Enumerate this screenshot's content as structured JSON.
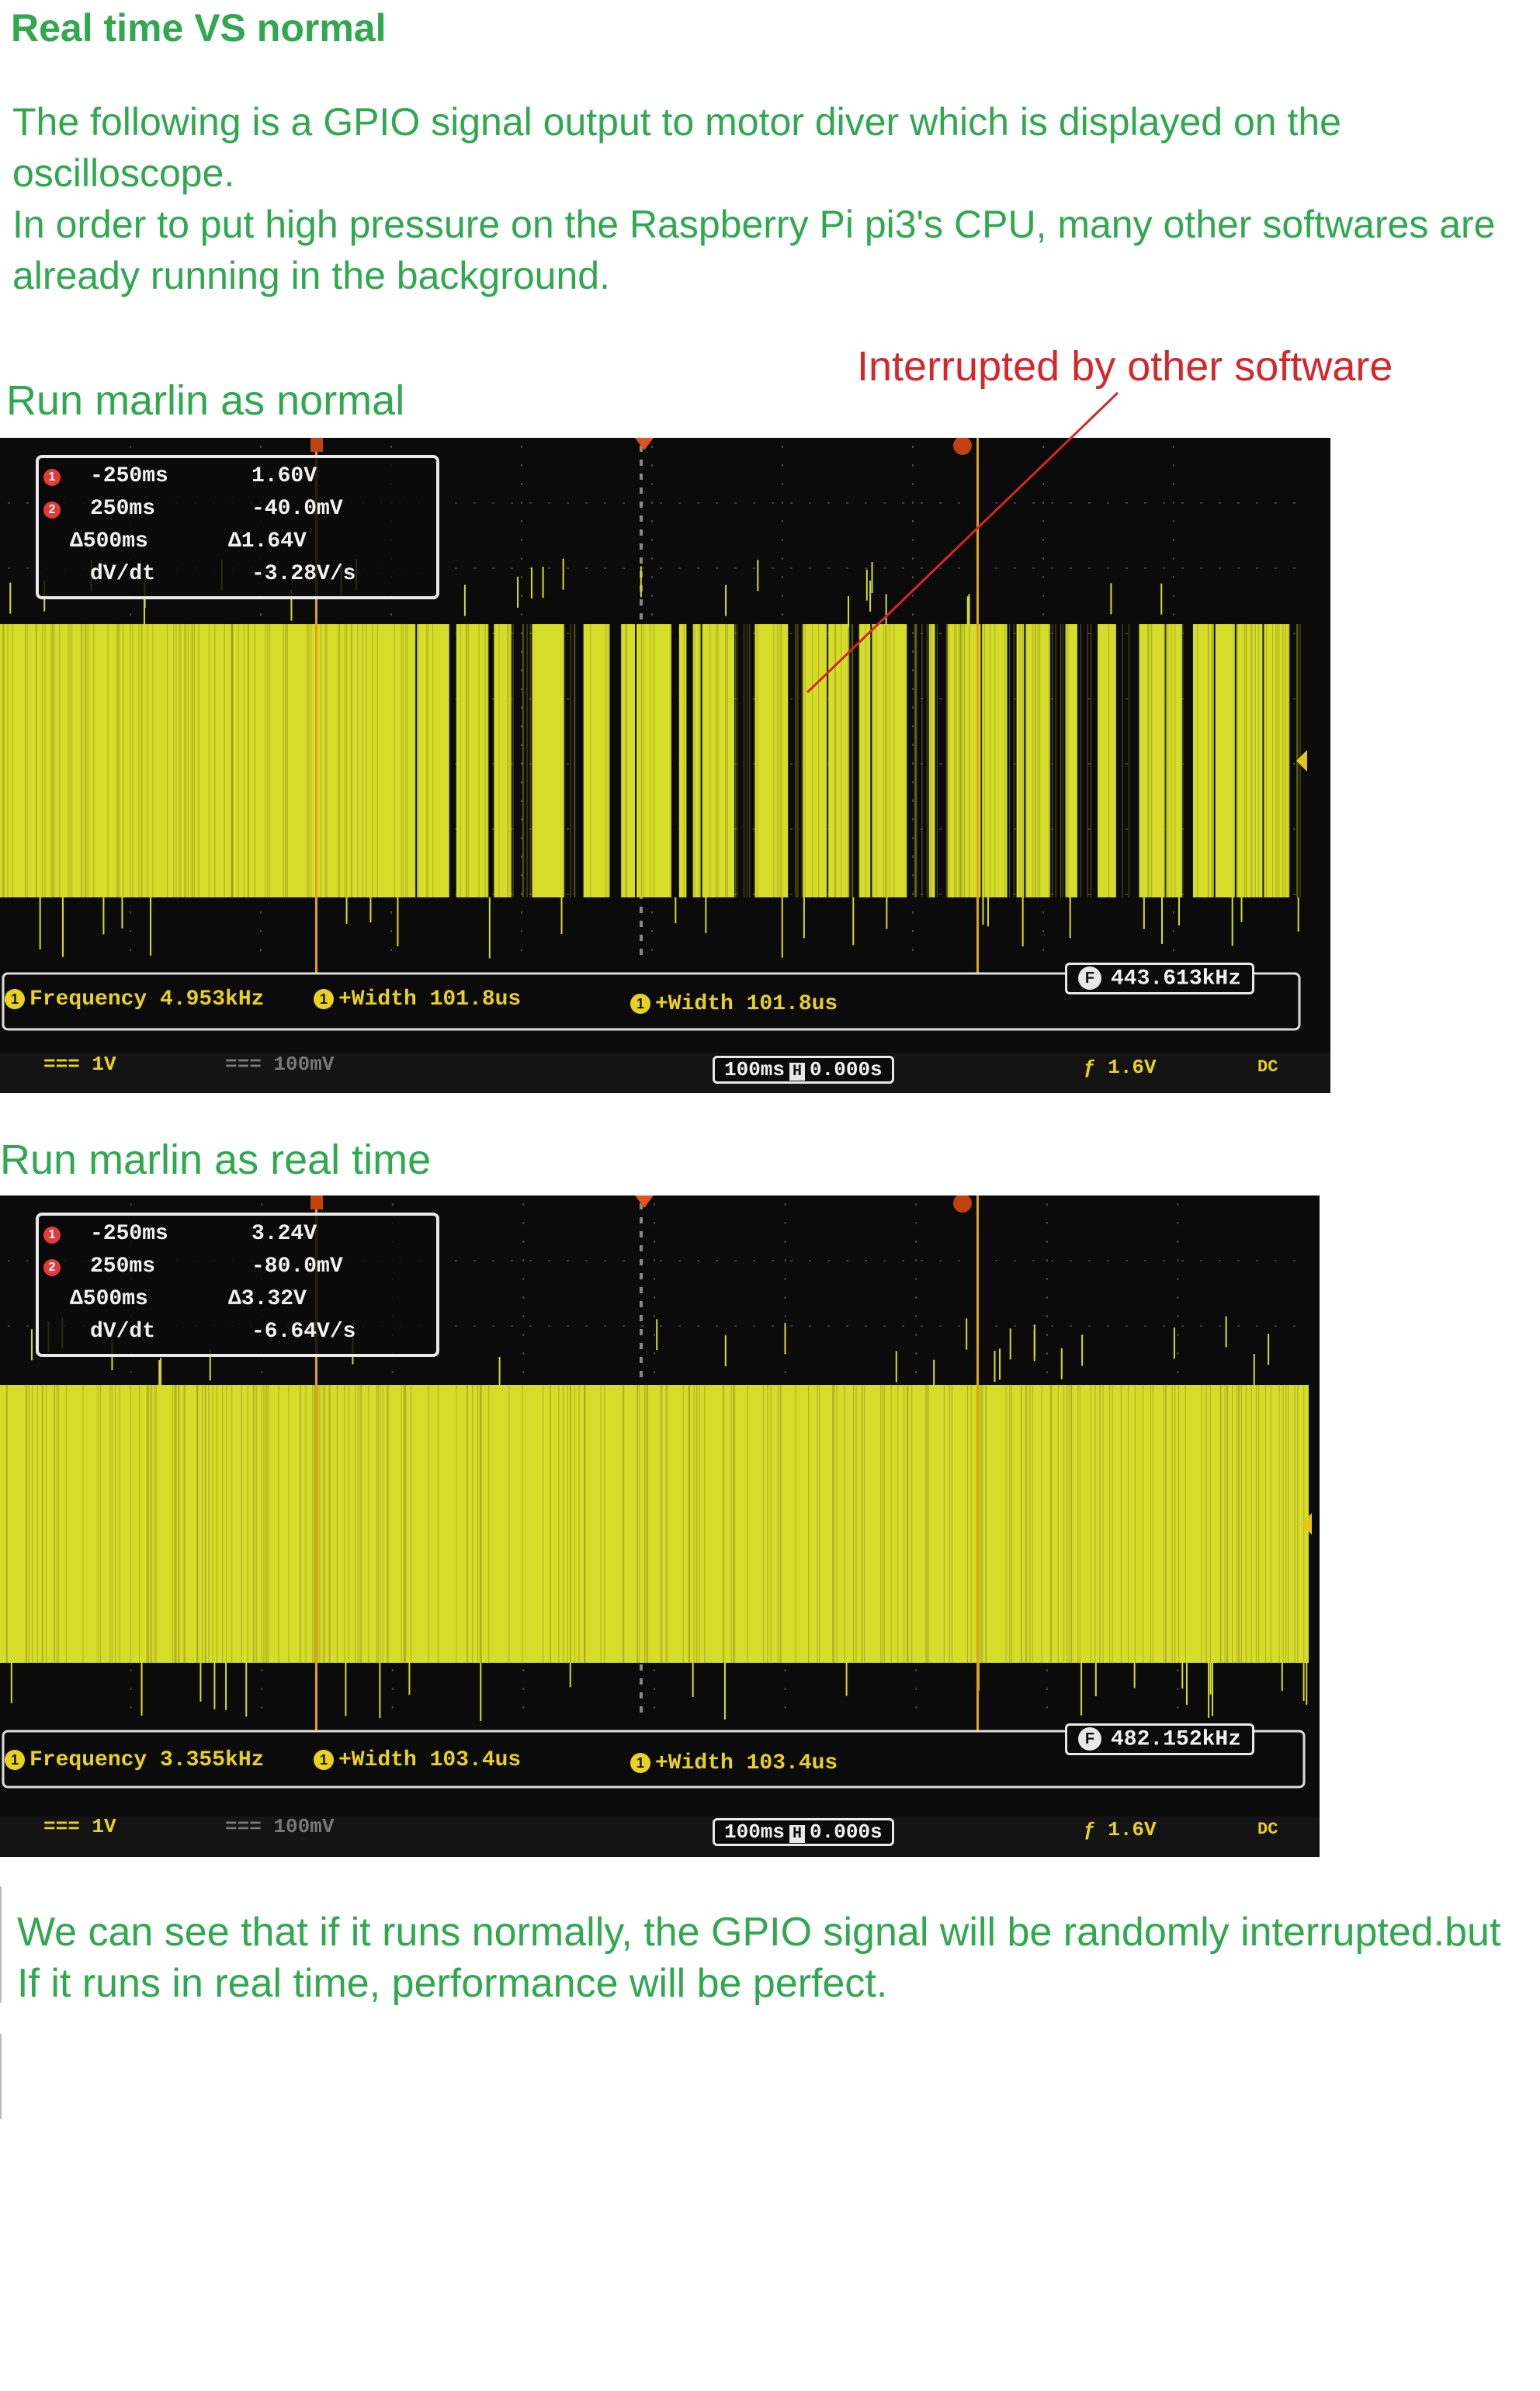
{
  "title": "Real time VS normal",
  "intro": {
    "line1": "The following is a GPIO signal output to motor diver which is displayed on the oscilloscope.",
    "line2": "In order to put high pressure on the Raspberry Pi pi3's CPU, many other softwares are already running in the background."
  },
  "annotation": "Interrupted by other software",
  "conclusion": "We can see that if it runs normally, the GPIO signal will be randomly interrupted.but If it runs in real time, performance will be perfect.",
  "colors": {
    "text_green": "#2fa84f",
    "annotation_red": "#d7262b",
    "signal_yellow": "#d6dc2a",
    "screen_black": "#0b0b0b"
  },
  "scopes": [
    {
      "label": "Run marlin as normal",
      "cursor": {
        "c1_time": "-250ms",
        "c1_volt": "1.60V",
        "c2_time": "250ms",
        "c2_volt": "-40.0mV",
        "d_time": "Δ500ms",
        "d_volt": "Δ1.64V",
        "dvdt_label": "dV/dt",
        "dvdt_value": "-3.28V/s",
        "c1_badge": "1",
        "c2_badge": "2"
      },
      "measurements": {
        "frequency": "Frequency 4.953kHz",
        "width1": "+Width 101.8us",
        "width2": "+Width 101.8us",
        "ch_badge": "1"
      },
      "counter": {
        "icon": "F",
        "value": "443.613kHz"
      },
      "bottom": {
        "ch1": "1V",
        "ch2": "100mV",
        "time": "100ms",
        "h": "H",
        "delay": "0.000s",
        "trig": "1.6V",
        "coupling": "DC"
      },
      "signal": {
        "interrupted": true
      }
    },
    {
      "label": "Run marlin as real time",
      "cursor": {
        "c1_time": "-250ms",
        "c1_volt": "3.24V",
        "c2_time": "250ms",
        "c2_volt": "-80.0mV",
        "d_time": "Δ500ms",
        "d_volt": "Δ3.32V",
        "dvdt_label": "dV/dt",
        "dvdt_value": "-6.64V/s",
        "c1_badge": "1",
        "c2_badge": "2"
      },
      "measurements": {
        "frequency": "Frequency 3.355kHz",
        "width1": "+Width 103.4us",
        "width2": "+Width 103.4us",
        "ch_badge": "1"
      },
      "counter": {
        "icon": "F",
        "value": "482.152kHz"
      },
      "bottom": {
        "ch1": "1V",
        "ch2": "100mV",
        "time": "100ms",
        "h": "H",
        "delay": "0.000s",
        "trig": "1.6V",
        "coupling": "DC"
      },
      "signal": {
        "interrupted": false
      }
    }
  ]
}
